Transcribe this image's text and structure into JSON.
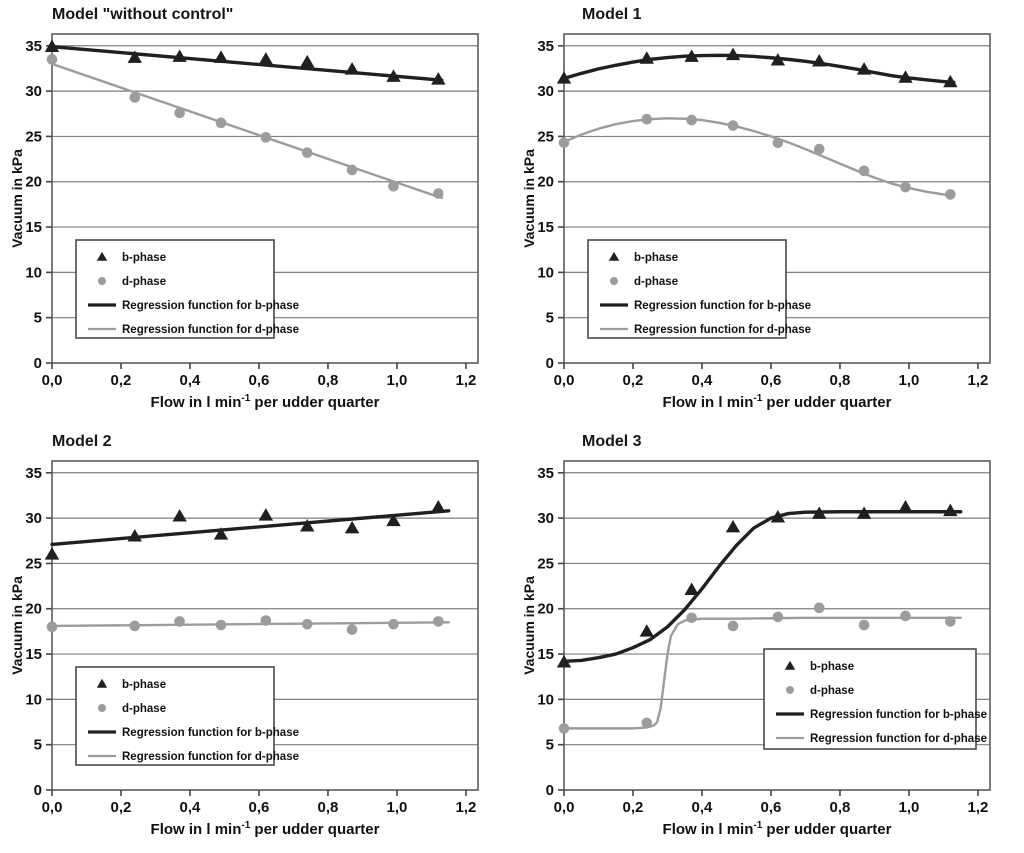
{
  "colors": {
    "b_phase": "#202020",
    "d_phase": "#9c9c9c",
    "grid_line": "#7f7f7f",
    "plot_border": "#6e6e6e",
    "tick": "#444444",
    "text": "#111111",
    "legend_border": "#4a4a4a",
    "background": "#ffffff"
  },
  "axes": {
    "ylabel": "Vacuum in kPa",
    "xlabel": "Flow in l min⁻¹ per udder quarter",
    "xlabel_parts": [
      "Flow in l min",
      "-1",
      " per udder quarter"
    ],
    "ytick_values": [
      0,
      5,
      10,
      15,
      20,
      25,
      30,
      35
    ],
    "ytick_labels": [
      "0",
      "5",
      "10",
      "15",
      "20",
      "25",
      "30",
      "35"
    ],
    "xtick_values": [
      0.0,
      0.2,
      0.4,
      0.6,
      0.8,
      1.0,
      1.2
    ],
    "xtick_labels": [
      "0,0",
      "0,2",
      "0,4",
      "0,6",
      "0,8",
      "1,0",
      "1,2"
    ],
    "xlim": [
      0,
      1.2
    ],
    "ylim": [
      0,
      35
    ],
    "grid": "horizontal"
  },
  "legend": {
    "items": [
      {
        "label": "b-phase",
        "symbol": "triangle"
      },
      {
        "label": "d-phase",
        "symbol": "circle"
      },
      {
        "label": "Regression function for b-phase",
        "symbol": "line-b"
      },
      {
        "label": "Regression function for d-phase",
        "symbol": "line-d"
      }
    ]
  },
  "chart_data": [
    {
      "type": "scatter",
      "title": "Model \"without control\"",
      "xlabel": "Flow in l min⁻¹ per udder quarter",
      "ylabel": "Vacuum in kPa",
      "legend_pos": "left",
      "x": [
        0.0,
        0.24,
        0.37,
        0.49,
        0.62,
        0.74,
        0.87,
        0.99,
        1.12
      ],
      "series": [
        {
          "name": "b-phase",
          "kind": "markers",
          "marker": "triangle",
          "color": "b",
          "values": [
            34.9,
            33.7,
            33.8,
            33.7,
            33.5,
            33.2,
            32.4,
            31.6,
            31.3
          ]
        },
        {
          "name": "d-phase",
          "kind": "markers",
          "marker": "circle",
          "color": "d",
          "values": [
            33.5,
            29.3,
            27.6,
            26.5,
            24.9,
            23.2,
            21.3,
            19.5,
            18.7
          ]
        },
        {
          "name": "Regression function for b-phase",
          "kind": "line",
          "color": "b",
          "points": [
            [
              0,
              34.9
            ],
            [
              1.13,
              31.2
            ]
          ]
        },
        {
          "name": "Regression function for d-phase",
          "kind": "line",
          "color": "d",
          "points": [
            [
              0,
              33.0
            ],
            [
              1.13,
              18.2
            ]
          ]
        }
      ]
    },
    {
      "type": "scatter",
      "title": "Model 1",
      "xlabel": "Flow in l min⁻¹ per udder quarter",
      "ylabel": "Vacuum in kPa",
      "legend_pos": "left",
      "x": [
        0.0,
        0.24,
        0.37,
        0.49,
        0.62,
        0.74,
        0.87,
        0.99,
        1.12
      ],
      "series": [
        {
          "name": "b-phase",
          "kind": "markers",
          "marker": "triangle",
          "color": "b",
          "values": [
            31.4,
            33.6,
            33.8,
            34.0,
            33.4,
            33.3,
            32.4,
            31.5,
            31.0
          ]
        },
        {
          "name": "d-phase",
          "kind": "markers",
          "marker": "circle",
          "color": "d",
          "values": [
            24.3,
            26.9,
            26.8,
            26.2,
            24.3,
            23.6,
            21.2,
            19.4,
            18.6
          ]
        },
        {
          "name": "Regression function for b-phase",
          "kind": "line",
          "color": "b",
          "points": [
            [
              0,
              31.4
            ],
            [
              0.05,
              31.95
            ],
            [
              0.1,
              32.45
            ],
            [
              0.15,
              32.85
            ],
            [
              0.2,
              33.2
            ],
            [
              0.25,
              33.5
            ],
            [
              0.3,
              33.7
            ],
            [
              0.35,
              33.85
            ],
            [
              0.4,
              33.92
            ],
            [
              0.45,
              33.95
            ],
            [
              0.5,
              33.92
            ],
            [
              0.55,
              33.82
            ],
            [
              0.6,
              33.68
            ],
            [
              0.65,
              33.5
            ],
            [
              0.7,
              33.28
            ],
            [
              0.75,
              33.02
            ],
            [
              0.8,
              32.72
            ],
            [
              0.85,
              32.4
            ],
            [
              0.9,
              32.05
            ],
            [
              0.95,
              31.7
            ],
            [
              1.0,
              31.45
            ],
            [
              1.05,
              31.25
            ],
            [
              1.1,
              31.05
            ],
            [
              1.13,
              30.95
            ]
          ]
        },
        {
          "name": "Regression function for d-phase",
          "kind": "line",
          "color": "d",
          "points": [
            [
              0,
              24.4
            ],
            [
              0.05,
              25.2
            ],
            [
              0.1,
              25.85
            ],
            [
              0.15,
              26.35
            ],
            [
              0.2,
              26.7
            ],
            [
              0.25,
              26.9
            ],
            [
              0.3,
              27.0
            ],
            [
              0.35,
              26.95
            ],
            [
              0.4,
              26.8
            ],
            [
              0.45,
              26.5
            ],
            [
              0.5,
              26.1
            ],
            [
              0.55,
              25.6
            ],
            [
              0.6,
              25.0
            ],
            [
              0.65,
              24.35
            ],
            [
              0.7,
              23.6
            ],
            [
              0.75,
              22.8
            ],
            [
              0.8,
              22.0
            ],
            [
              0.85,
              21.2
            ],
            [
              0.9,
              20.45
            ],
            [
              0.95,
              19.8
            ],
            [
              1.0,
              19.3
            ],
            [
              1.05,
              18.9
            ],
            [
              1.1,
              18.6
            ],
            [
              1.13,
              18.5
            ]
          ]
        }
      ]
    },
    {
      "type": "scatter",
      "title": "Model 2",
      "xlabel": "Flow in l min⁻¹ per udder quarter",
      "ylabel": "Vacuum in kPa",
      "legend_pos": "left",
      "x": [
        0.0,
        0.24,
        0.37,
        0.49,
        0.62,
        0.74,
        0.87,
        0.99,
        1.12
      ],
      "series": [
        {
          "name": "b-phase",
          "kind": "markers",
          "marker": "triangle",
          "color": "b",
          "values": [
            26.0,
            28.0,
            30.2,
            28.2,
            30.3,
            29.1,
            28.9,
            29.7,
            31.2
          ]
        },
        {
          "name": "d-phase",
          "kind": "markers",
          "marker": "circle",
          "color": "d",
          "values": [
            18.0,
            18.1,
            18.6,
            18.2,
            18.7,
            18.3,
            17.7,
            18.3,
            18.6
          ]
        },
        {
          "name": "Regression function for b-phase",
          "kind": "line",
          "color": "b",
          "points": [
            [
              0,
              27.1
            ],
            [
              1.15,
              30.8
            ]
          ]
        },
        {
          "name": "Regression function for d-phase",
          "kind": "line",
          "color": "d",
          "points": [
            [
              0,
              18.1
            ],
            [
              1.15,
              18.5
            ]
          ]
        }
      ]
    },
    {
      "type": "scatter",
      "title": "Model 3",
      "xlabel": "Flow in l min⁻¹ per udder quarter",
      "ylabel": "Vacuum in kPa",
      "legend_pos": "right",
      "x": [
        0.0,
        0.24,
        0.37,
        0.49,
        0.62,
        0.74,
        0.87,
        0.99,
        1.12
      ],
      "series": [
        {
          "name": "b-phase",
          "kind": "markers",
          "marker": "triangle",
          "color": "b",
          "values": [
            14.1,
            17.5,
            22.1,
            29.0,
            30.1,
            30.5,
            30.5,
            31.2,
            30.8
          ]
        },
        {
          "name": "d-phase",
          "kind": "markers",
          "marker": "circle",
          "color": "d",
          "values": [
            6.8,
            7.4,
            19.0,
            18.1,
            19.1,
            20.1,
            18.2,
            19.2,
            18.6
          ]
        },
        {
          "name": "Regression function for b-phase",
          "kind": "line",
          "color": "b",
          "points": [
            [
              0,
              14.2
            ],
            [
              0.05,
              14.3
            ],
            [
              0.1,
              14.6
            ],
            [
              0.15,
              15.0
            ],
            [
              0.2,
              15.7
            ],
            [
              0.25,
              16.6
            ],
            [
              0.3,
              18.0
            ],
            [
              0.35,
              19.9
            ],
            [
              0.4,
              22.2
            ],
            [
              0.45,
              24.7
            ],
            [
              0.5,
              27.0
            ],
            [
              0.55,
              28.9
            ],
            [
              0.6,
              30.0
            ],
            [
              0.65,
              30.5
            ],
            [
              0.7,
              30.65
            ],
            [
              0.8,
              30.7
            ],
            [
              0.9,
              30.7
            ],
            [
              1.0,
              30.7
            ],
            [
              1.1,
              30.7
            ],
            [
              1.15,
              30.7
            ]
          ]
        },
        {
          "name": "Regression function for d-phase",
          "kind": "line",
          "color": "d",
          "points": [
            [
              0,
              6.8
            ],
            [
              0.1,
              6.8
            ],
            [
              0.2,
              6.8
            ],
            [
              0.24,
              6.9
            ],
            [
              0.26,
              7.1
            ],
            [
              0.27,
              7.5
            ],
            [
              0.28,
              9.0
            ],
            [
              0.29,
              12.0
            ],
            [
              0.3,
              15.0
            ],
            [
              0.31,
              17.0
            ],
            [
              0.33,
              18.3
            ],
            [
              0.35,
              18.7
            ],
            [
              0.4,
              18.9
            ],
            [
              0.5,
              18.9
            ],
            [
              0.6,
              18.95
            ],
            [
              0.7,
              19.0
            ],
            [
              0.8,
              19.0
            ],
            [
              0.9,
              19.0
            ],
            [
              1.0,
              19.0
            ],
            [
              1.1,
              19.0
            ],
            [
              1.15,
              19.0
            ]
          ]
        }
      ]
    }
  ]
}
